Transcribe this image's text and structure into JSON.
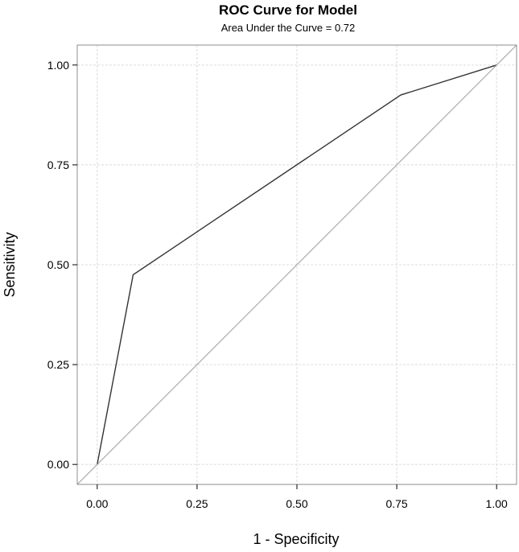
{
  "chart_data": {
    "type": "line",
    "title": "ROC Curve for Model",
    "subtitle": "Area Under the Curve = 0.72",
    "xlabel": "1 - Specificity",
    "ylabel": "Sensitivity",
    "xlim": [
      -0.05,
      1.05
    ],
    "ylim": [
      -0.05,
      1.05
    ],
    "xticks": [
      0.0,
      0.25,
      0.5,
      0.75,
      1.0
    ],
    "yticks": [
      0.0,
      0.25,
      0.5,
      0.75,
      1.0
    ],
    "xtick_labels": [
      "0.00",
      "0.25",
      "0.50",
      "0.75",
      "1.00"
    ],
    "ytick_labels": [
      "0.00",
      "0.25",
      "0.50",
      "0.75",
      "1.00"
    ],
    "grid": true,
    "series": [
      {
        "x": [
          0.0,
          0.09,
          0.76,
          1.0
        ],
        "y": [
          0.0,
          0.475,
          0.925,
          1.0
        ],
        "color": "#333333"
      },
      {
        "x": [
          -0.05,
          1.05
        ],
        "y": [
          -0.05,
          1.05
        ],
        "color": "#a0a0a0"
      }
    ]
  }
}
